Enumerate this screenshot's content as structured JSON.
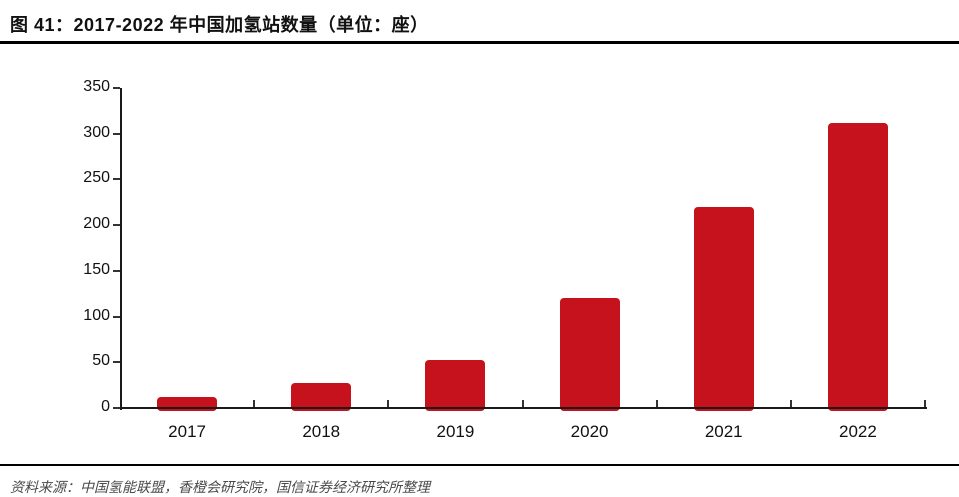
{
  "figure": {
    "title": "图 41：2017-2022 年中国加氢站数量（单位：座）",
    "footer_source": "资料来源：中国氢能联盟，香橙会研究院，国信证券经济研究所整理"
  },
  "colors": {
    "bar": "#C5121C",
    "axis": "#1a1a1a",
    "title_text": "#111111",
    "rule": "#000000",
    "footer_text": "#4a4a4a"
  },
  "chart_data": {
    "type": "bar",
    "title": "2017-2022 年中国加氢站数量（单位：座）",
    "categories": [
      "2017",
      "2018",
      "2019",
      "2020",
      "2021",
      "2022"
    ],
    "values": [
      12,
      27,
      52,
      120,
      220,
      312
    ],
    "xlabel": "",
    "ylabel": "",
    "unit": "座",
    "ylim": [
      0,
      350
    ],
    "yticks": [
      0,
      50,
      100,
      150,
      200,
      250,
      300,
      350
    ],
    "grid": false,
    "legend": null,
    "bar_color": "#C5121C"
  }
}
